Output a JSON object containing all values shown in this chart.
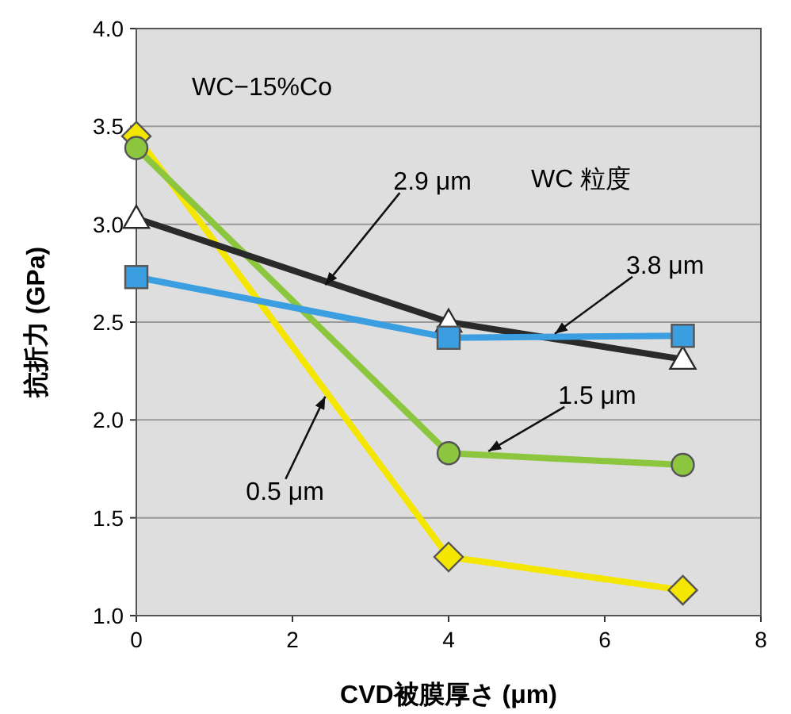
{
  "chart_data": {
    "type": "line",
    "xlabel": "CVD被膜厚さ (μm)",
    "ylabel": "抗折力 (GPa)",
    "x": [
      0,
      4,
      7
    ],
    "xlim": [
      0,
      8
    ],
    "xticks": [
      0,
      2,
      4,
      6,
      8
    ],
    "ylim": [
      1.0,
      4.0
    ],
    "yticks": [
      {
        "value": 1.0,
        "label": "1.0"
      },
      {
        "value": 1.5,
        "label": "1.5"
      },
      {
        "value": 2.0,
        "label": "2.0"
      },
      {
        "value": 2.5,
        "label": "2.5"
      },
      {
        "value": 3.0,
        "label": "3.0"
      },
      {
        "value": 3.5,
        "label": "3.5"
      },
      {
        "value": 4.0,
        "label": "4.0"
      }
    ],
    "grid": "y",
    "series": [
      {
        "color": "#f5e600",
        "marker": "diamond",
        "values": [
          3.45,
          1.3,
          1.13
        ]
      },
      {
        "color": "#8cc63f",
        "marker": "circle",
        "values": [
          3.39,
          1.83,
          1.77
        ]
      },
      {
        "color": "#2a2a2a",
        "marker": "triangle",
        "values": [
          3.03,
          2.5,
          2.31
        ]
      },
      {
        "color": "#3a9ee0",
        "marker": "square",
        "values": [
          2.73,
          2.42,
          2.43
        ]
      }
    ],
    "annotations": [
      "WC−15%Co",
      "WC 粒度",
      {
        "text": "2.9 μm",
        "x": 2.42,
        "y": 2.69
      },
      {
        "text": "3.8 μm",
        "x": 5.36,
        "y": 2.44
      },
      {
        "text": "1.5 μm",
        "x": 4.51,
        "y": 1.84
      },
      {
        "text": "0.5 μm",
        "x": 2.42,
        "y": 2.12
      }
    ]
  }
}
